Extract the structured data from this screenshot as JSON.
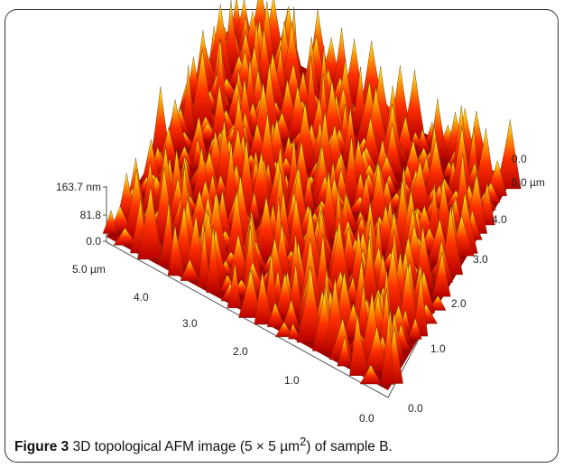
{
  "figure": {
    "z_axis": {
      "labels": [
        "163.7 nm",
        "81.8",
        "0.0"
      ]
    },
    "left_axis": {
      "labels": [
        "5.0 µm",
        "4.0",
        "3.0",
        "2.0",
        "1.0",
        "0.0"
      ]
    },
    "right_axis": {
      "labels": [
        "0.0",
        "1.0",
        "2.0",
        "3.0",
        "4.0",
        "5.0 µm",
        "0.0"
      ]
    },
    "caption": {
      "label": "Figure 3",
      "text": "3D topological AFM image (5 × 5 µm",
      "superscript": "2",
      "text_end": ") of sample B."
    }
  }
}
